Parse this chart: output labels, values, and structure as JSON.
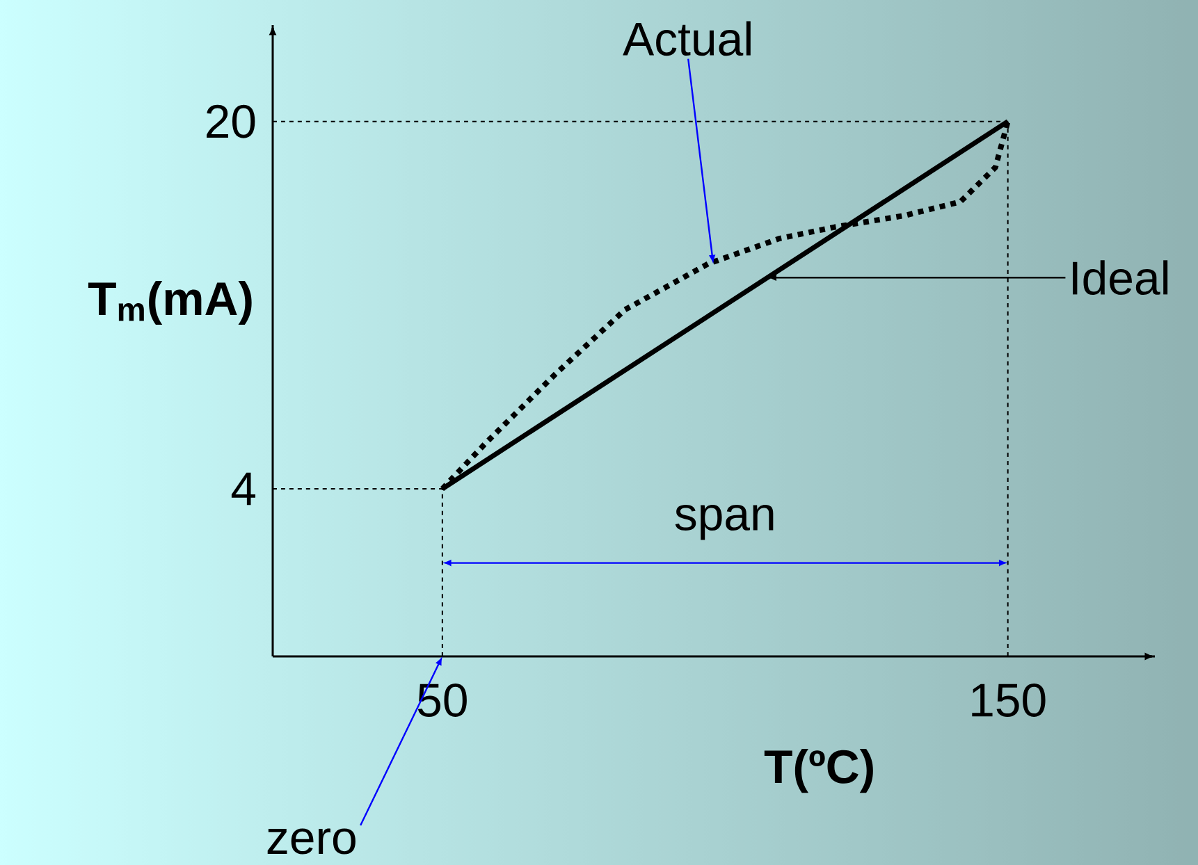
{
  "chart_data": {
    "type": "line",
    "xlabel": "T(ºC)",
    "ylabel": "T$_{m}$(mA)",
    "xlim": [
      20,
      176
    ],
    "ylim": [
      -3.3,
      24.2
    ],
    "xticks": [
      50,
      150
    ],
    "yticks": [
      4,
      20
    ],
    "series": [
      {
        "color": "#000000",
        "line_style": "dotted",
        "x": [
          50,
          57.7,
          70,
          82.3,
          97,
          109.6,
          119.4,
          131.7,
          141.6,
          147.8,
          150
        ],
        "values": [
          4,
          6,
          9,
          11.8,
          13.8,
          14.9,
          15.4,
          15.9,
          16.5,
          18,
          20
        ]
      },
      {
        "color": "#000000",
        "line_style": "solid",
        "x": [
          50,
          150
        ],
        "values": [
          4,
          20
        ]
      }
    ],
    "ref_lines": [
      {
        "axis": "y",
        "value": 4,
        "line_style": "dashed",
        "color": "#000000"
      },
      {
        "axis": "y",
        "value": 20,
        "line_style": "dashed",
        "color": "#000000"
      },
      {
        "axis": "x",
        "value": 50,
        "line_style": "dashed",
        "color": "#000000"
      },
      {
        "axis": "x",
        "value": 150,
        "line_style": "dashed",
        "color": "#000000"
      }
    ],
    "annotations": [
      {
        "text": "Actual",
        "x": 97.9,
        "y": 13.8
      },
      {
        "text": "Ideal",
        "x": 107.5,
        "y": 13.2
      },
      "span",
      {
        "text": "zero",
        "x": 50,
        "y": -3.3
      }
    ]
  }
}
